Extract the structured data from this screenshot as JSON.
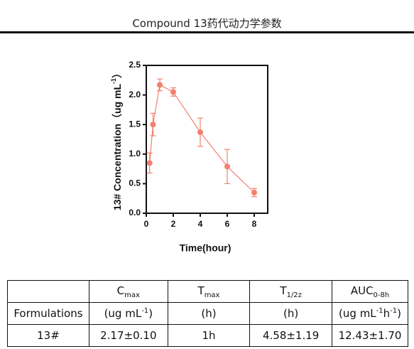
{
  "header": {
    "title": "Compound 13药代动力学参数"
  },
  "chart_data": {
    "type": "line",
    "xlabel": "Time(hour)",
    "ylabel": [
      {
        "text": "13# Concentration（ug mL"
      },
      {
        "text": "-1",
        "style": "sup"
      },
      {
        "text": "）"
      }
    ],
    "x": [
      0.25,
      0.5,
      1,
      2,
      4,
      6,
      8
    ],
    "series": [
      {
        "color": "#f2806f",
        "values": [
          0.85,
          1.5,
          2.17,
          2.05,
          1.37,
          0.79,
          0.35
        ],
        "errors": [
          0.17,
          0.19,
          0.1,
          0.07,
          0.24,
          0.29,
          0.07
        ]
      }
    ],
    "xlim": [
      0,
      9
    ],
    "xticks": [
      0,
      2,
      4,
      6,
      8
    ],
    "ylim": [
      0,
      2.5
    ],
    "yticks": [
      {
        "value": 0,
        "label": "0.0"
      },
      {
        "value": 0.5,
        "label": "0.5"
      },
      {
        "value": 1,
        "label": "1.0"
      },
      {
        "value": 1.5,
        "label": "1.5"
      },
      {
        "value": 2,
        "label": "2.0"
      },
      {
        "value": 2.5,
        "label": "2.5"
      }
    ]
  },
  "table": {
    "header": [
      [
        {
          "text": "C"
        },
        {
          "text": "max",
          "style": "sub"
        }
      ],
      [
        {
          "text": "T"
        },
        {
          "text": "max",
          "style": "sub"
        }
      ],
      [
        {
          "text": "T"
        },
        {
          "text": "1/2z",
          "style": "sub"
        }
      ],
      [
        {
          "text": "AUC"
        },
        {
          "text": "0-8h",
          "style": "sub"
        }
      ]
    ],
    "rows": [
      [
        "Formulations",
        [
          {
            "text": "(ug mL"
          },
          {
            "text": "-1",
            "style": "sup"
          },
          {
            "text": ")"
          }
        ],
        "(h)",
        "(h)",
        [
          {
            "text": "(ug mL"
          },
          {
            "text": "-1",
            "style": "sup"
          },
          {
            "text": "h"
          },
          {
            "text": "-1",
            "style": "sup"
          },
          {
            "text": ")"
          }
        ]
      ],
      [
        "13#",
        "2.17±0.10",
        "1h",
        "4.58±1.19",
        "12.43±1.70"
      ]
    ]
  }
}
